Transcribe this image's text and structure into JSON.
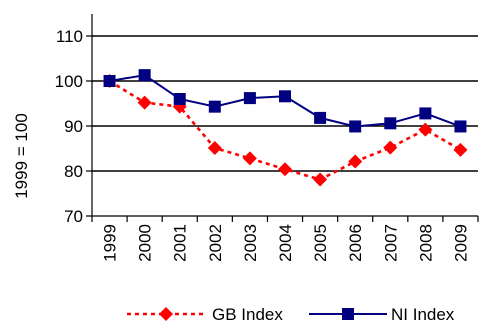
{
  "chart_data": {
    "type": "line",
    "title": "",
    "xlabel": "",
    "ylabel": "1999 = 100",
    "ylim": [
      70,
      110
    ],
    "yticks": [
      70,
      80,
      90,
      100,
      110
    ],
    "grid": true,
    "legend_position": "bottom",
    "categories": [
      "1999",
      "2000",
      "2001",
      "2002",
      "2003",
      "2004",
      "2005",
      "2006",
      "2007",
      "2008",
      "2009"
    ],
    "series": [
      {
        "name": "GB Index",
        "values": [
          100,
          95.2,
          94.3,
          85.1,
          82.8,
          80.4,
          78.1,
          82.1,
          85.2,
          89.2,
          84.7
        ],
        "color": "#ff0000",
        "line_style": "dashed",
        "marker": "diamond"
      },
      {
        "name": "NI Index",
        "values": [
          100,
          101.3,
          96.0,
          94.3,
          96.2,
          96.6,
          91.8,
          89.9,
          90.6,
          92.8,
          89.9
        ],
        "color": "#000080",
        "line_style": "solid",
        "marker": "square"
      }
    ]
  }
}
